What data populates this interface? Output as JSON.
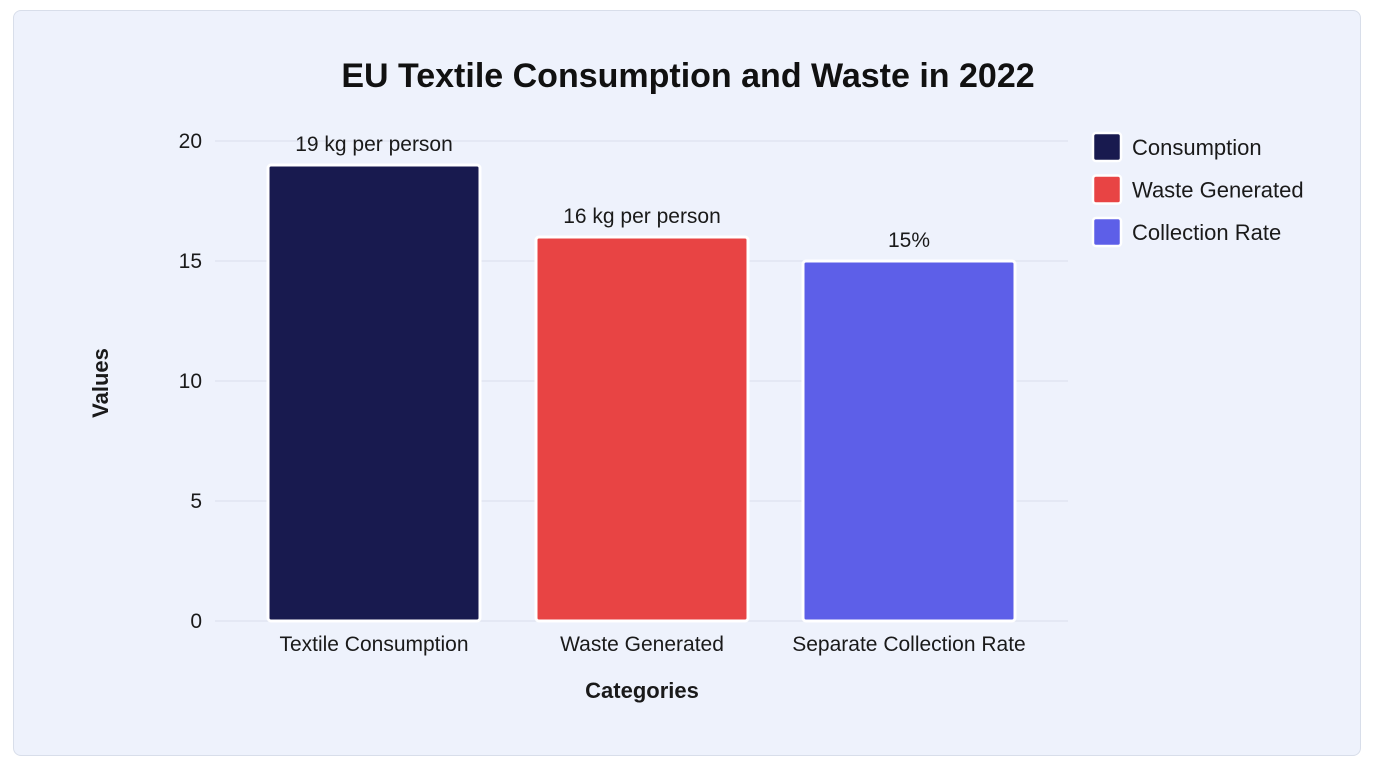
{
  "chart_data": {
    "type": "bar",
    "title": "EU Textile Consumption and Waste in 2022",
    "xlabel": "Categories",
    "ylabel": "Values",
    "categories": [
      "Textile Consumption",
      "Waste Generated",
      "Separate Collection Rate"
    ],
    "values": [
      19,
      16,
      15
    ],
    "data_labels": [
      "19 kg per person",
      "16 kg per person",
      "15%"
    ],
    "colors": [
      "#181a4f",
      "#e84444",
      "#5d5fe8"
    ],
    "ylim": [
      0,
      20
    ],
    "yticks": [
      "0",
      "5",
      "10",
      "15",
      "20"
    ],
    "ytick_values": [
      0,
      5,
      10,
      15,
      20
    ],
    "grid": true,
    "legend_position": "top-right",
    "legend": [
      {
        "name": "Consumption",
        "color": "#181a4f"
      },
      {
        "name": "Waste Generated",
        "color": "#e84444"
      },
      {
        "name": "Collection Rate",
        "color": "#5d5fe8"
      }
    ]
  }
}
